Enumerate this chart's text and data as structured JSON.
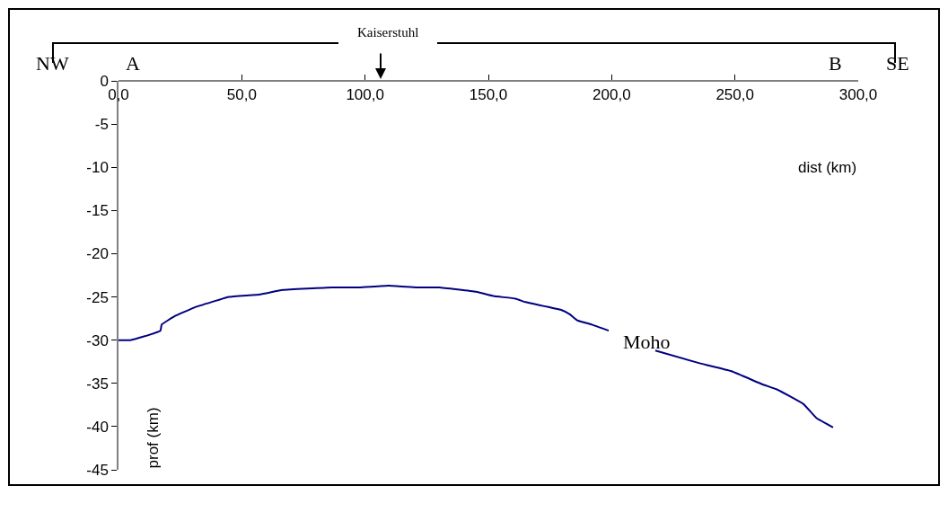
{
  "chart_data": {
    "type": "line",
    "xlabel": "dist (km)",
    "ylabel": "prof (km)",
    "x": [
      0,
      4.7,
      10,
      17,
      17.5,
      23,
      31,
      40,
      44.8,
      57.5,
      66.6,
      86.6,
      97.5,
      109.6,
      121,
      130,
      145,
      152,
      161,
      165,
      179.5,
      183,
      186,
      192,
      198.8,
      208,
      217.7,
      236,
      248.6,
      261,
      267,
      277.8,
      283,
      289.8
    ],
    "series": [
      {
        "color": "#000080",
        "values": [
          -30,
          -30,
          -29.6,
          -28.9,
          -28.2,
          -27.2,
          -26.2,
          -25.4,
          -25,
          -24.7,
          -24.2,
          -23.9,
          -23.9,
          -23.7,
          -23.9,
          -23.9,
          -24.4,
          -24.9,
          -25.2,
          -25.6,
          -26.5,
          -27,
          -27.7,
          -28.2,
          -28.9,
          null,
          -31.2,
          -32.7,
          -33.6,
          -35.1,
          -35.7,
          -37.4,
          -39,
          -40.1
        ]
      }
    ],
    "xlim": [
      0,
      300
    ],
    "ylim": [
      -45,
      0
    ],
    "xticks": [
      {
        "value": 0,
        "label": "0,0"
      },
      {
        "value": 50,
        "label": "50,0"
      },
      {
        "value": 100,
        "label": "100,0"
      },
      {
        "value": 150,
        "label": "150,0"
      },
      {
        "value": 200,
        "label": "200,0"
      },
      {
        "value": 250,
        "label": "250,0"
      },
      {
        "value": 300,
        "label": "300,0"
      }
    ],
    "yticks": [
      -45,
      -40,
      -35,
      -30,
      -25,
      -20,
      -15,
      -10,
      -5,
      0
    ],
    "annotations": [
      "NW",
      "A",
      "Kaiserstuhl",
      "B",
      "SE",
      "Moho"
    ],
    "grid": false,
    "marker": "none",
    "line_style": "solid"
  }
}
